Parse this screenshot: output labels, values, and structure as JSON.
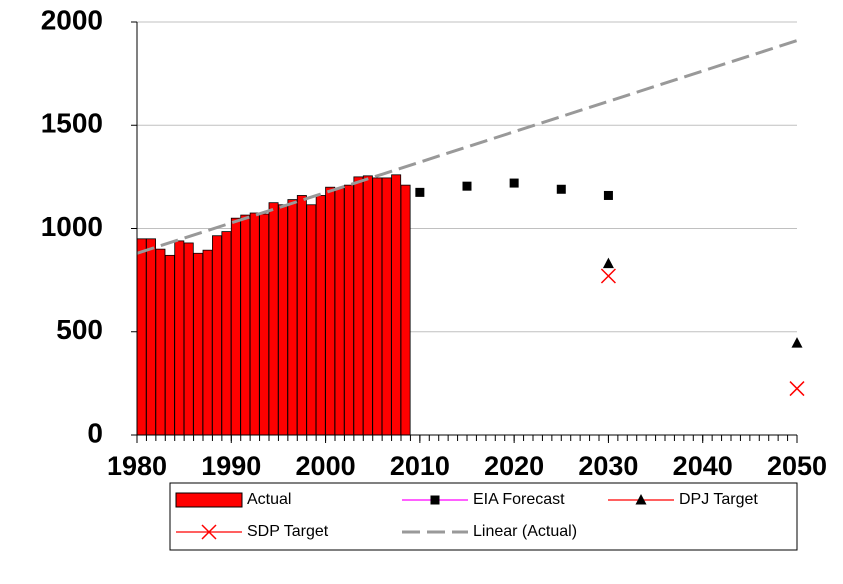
{
  "chart_data": {
    "type": "bar",
    "x": [
      1980,
      1981,
      1982,
      1983,
      1984,
      1985,
      1986,
      1987,
      1988,
      1989,
      1990,
      1991,
      1992,
      1993,
      1994,
      1995,
      1996,
      1997,
      1998,
      1999,
      2000,
      2001,
      2002,
      2003,
      2004,
      2005,
      2006,
      2007,
      2008
    ],
    "series": [
      {
        "name": "Actual",
        "type": "bar",
        "color": "#ff0000",
        "values": [
          950,
          950,
          900,
          870,
          940,
          930,
          880,
          895,
          965,
          985,
          1050,
          1065,
          1075,
          1070,
          1125,
          1115,
          1140,
          1160,
          1115,
          1160,
          1200,
          1195,
          1210,
          1250,
          1255,
          1245,
          1245,
          1260,
          1210
        ]
      },
      {
        "name": "EIA Forecast",
        "type": "marker",
        "marker": "square",
        "color": "#ff00ff",
        "marker_color": "#000000",
        "x": [
          2010,
          2015,
          2020,
          2025,
          2030
        ],
        "values": [
          1175,
          1205,
          1220,
          1190,
          1160
        ]
      },
      {
        "name": "DPJ Target",
        "type": "marker",
        "marker": "triangle",
        "color": "#ff0000",
        "marker_color": "#000000",
        "x": [
          2030,
          2050
        ],
        "values": [
          830,
          445
        ]
      },
      {
        "name": "SDP Target",
        "type": "marker",
        "marker": "cross",
        "color": "#ff0000",
        "marker_color": "#ff0000",
        "x": [
          2030,
          2050
        ],
        "values": [
          770,
          225
        ]
      },
      {
        "name": "Linear (Actual)",
        "type": "dashed",
        "color": "#999999",
        "x": [
          1980,
          2050
        ],
        "values": [
          880,
          1910
        ]
      }
    ],
    "xlim": [
      1980,
      2050
    ],
    "xticks": [
      1980,
      1990,
      2000,
      2010,
      2020,
      2030,
      2040,
      2050
    ],
    "ylim": [
      0,
      2000
    ],
    "yticks": [
      0,
      500,
      1000,
      1500,
      2000
    ],
    "grid": true,
    "legend": "bottom"
  }
}
